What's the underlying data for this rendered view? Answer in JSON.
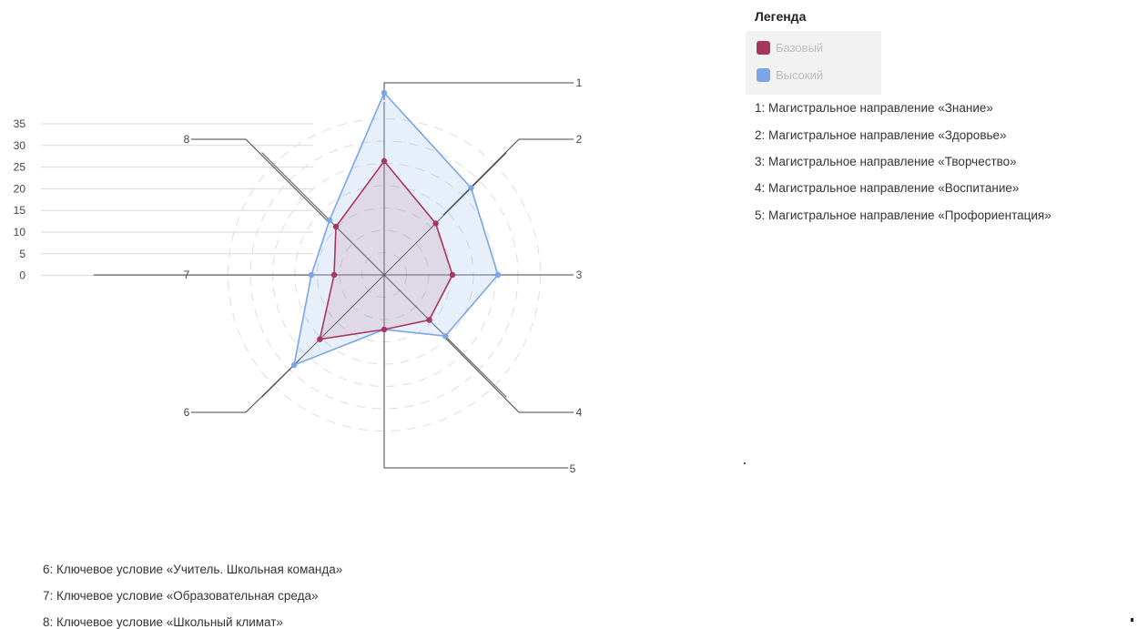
{
  "chart_data": {
    "type": "radar",
    "axes": [
      "1",
      "2",
      "3",
      "4",
      "5",
      "6",
      "7",
      "8"
    ],
    "radial_ticks": [
      "35",
      "30",
      "25",
      "20",
      "15",
      "10",
      "5",
      "0"
    ],
    "rmax": 38,
    "series": [
      {
        "name": "Базовый",
        "color": "#a8365c",
        "values": [
          25,
          16,
          15,
          14,
          12,
          20,
          11,
          15
        ]
      },
      {
        "name": "Высокий",
        "color": "#7aa6e8",
        "values": [
          40,
          27,
          25,
          19,
          12,
          28,
          16,
          17
        ]
      }
    ],
    "legend_title": "Легенда",
    "legend_position": "top-right"
  },
  "descriptions_top": [
    "1: Магистральное направление «Знание»",
    "2: Магистральное направление «Здоровье»",
    "3: Магистральное направление «Творчество»",
    "4: Магистральное направление «Воспитание»",
    "5: Магистральное направление «Профориентация»"
  ],
  "descriptions_bottom": [
    "6: Ключевое условие «Учитель. Школьная команда»",
    "7: Ключевое условие «Образовательная среда»",
    "8: Ключевое условие «Школьный климат»"
  ]
}
